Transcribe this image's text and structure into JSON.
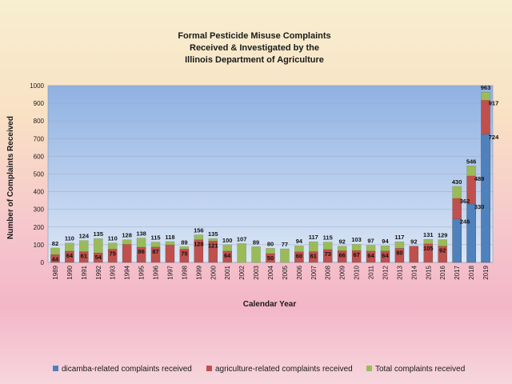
{
  "chart_data": {
    "type": "bar",
    "title": [
      "Formal Pesticide Misuse Complaints",
      "Received & Investigated by the",
      "Illinois Department of Agriculture"
    ],
    "xlabel": "Calendar Year",
    "ylabel": "Number of Complaints Received",
    "ylim": [
      0,
      1000
    ],
    "yticks": [
      "0",
      "100",
      "200",
      "300",
      "400",
      "500",
      "600",
      "700",
      "800",
      "900",
      "1000"
    ],
    "categories": [
      "1989",
      "1990",
      "1991",
      "1992",
      "1993",
      "1994",
      "1995",
      "1996",
      "1997",
      "1998",
      "1999",
      "2000",
      "2001",
      "2002",
      "2003",
      "2004",
      "2005",
      "2006",
      "2007",
      "2008",
      "2009",
      "2010",
      "2011",
      "2012",
      "2013",
      "2014",
      "2015",
      "2016",
      "2017",
      "2018",
      "2019"
    ],
    "legend_position": "bottom",
    "series": [
      {
        "name": "dicamba-related complaints received",
        "color": "#4f81bd",
        "values": [
          null,
          null,
          null,
          null,
          null,
          null,
          null,
          null,
          null,
          null,
          null,
          null,
          null,
          null,
          null,
          null,
          null,
          null,
          null,
          null,
          null,
          null,
          null,
          null,
          null,
          null,
          null,
          null,
          246,
          330,
          724
        ],
        "labels": [
          "",
          "",
          "",
          "",
          "",
          "",
          "",
          "",
          "",
          "",
          "",
          "",
          "",
          "",
          "",
          "",
          "",
          "",
          "",
          "",
          "",
          "",
          "",
          "",
          "",
          "",
          "",
          "",
          "246",
          "330",
          "724"
        ]
      },
      {
        "name": "agriculture-related complaints received",
        "color": "#c0504d",
        "values": [
          44,
          64,
          61,
          54,
          75,
          102,
          86,
          87,
          99,
          75,
          128,
          121,
          64,
          null,
          null,
          50,
          null,
          60,
          61,
          73,
          66,
          67,
          64,
          64,
          80,
          92,
          105,
          92,
          362,
          489,
          917
        ],
        "labels": [
          "44",
          "64",
          "61",
          "54",
          "75",
          "",
          "86",
          "87",
          "",
          "75",
          "128",
          "121",
          "64",
          "",
          "",
          "50",
          "",
          "60",
          "61",
          "73",
          "66",
          "67",
          "64",
          "64",
          "80",
          "",
          "105",
          "92",
          "362",
          "489",
          "917"
        ]
      },
      {
        "name": "Total complaints received",
        "color": "#9bbb59",
        "values": [
          82,
          110,
          124,
          135,
          110,
          128,
          138,
          115,
          118,
          89,
          156,
          135,
          100,
          107,
          89,
          80,
          77,
          94,
          117,
          115,
          92,
          103,
          97,
          94,
          117,
          92,
          131,
          129,
          430,
          546,
          963
        ],
        "labels": [
          "82",
          "110",
          "124",
          "135",
          "110",
          "128",
          "138",
          "115",
          "118",
          "89",
          "156",
          "135",
          "100",
          "107",
          "89",
          "80",
          "77",
          "94",
          "117",
          "115",
          "92",
          "103",
          "97",
          "94",
          "117",
          "92",
          "131",
          "129",
          "430",
          "546",
          "963"
        ]
      }
    ],
    "colors": {
      "plot_area_top": "#8fb1e2",
      "plot_area_bottom": "#dbe6f6",
      "grid": "#9aa9c4"
    }
  }
}
